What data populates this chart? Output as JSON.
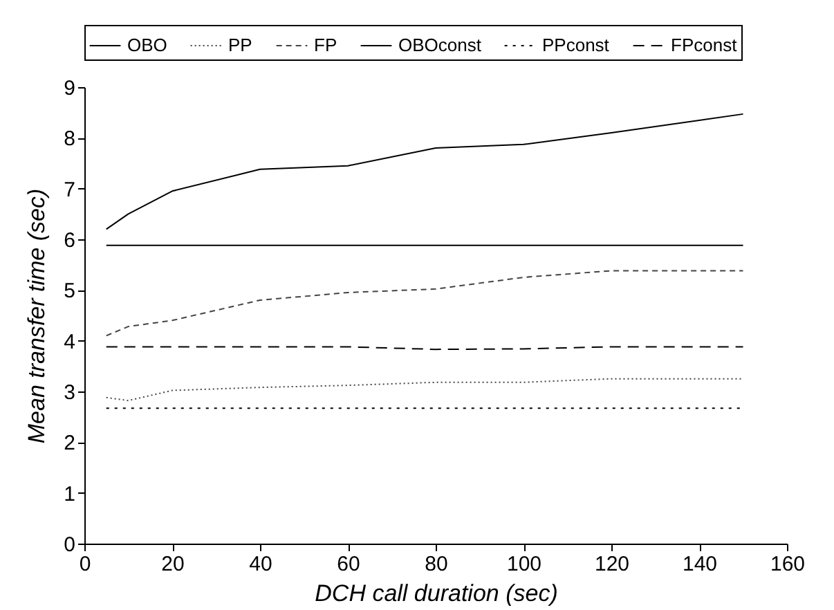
{
  "chart_data": {
    "type": "line",
    "xlabel": "DCH call duration (sec)",
    "ylabel": "Mean transfer time (sec)",
    "x": [
      5,
      10,
      20,
      40,
      60,
      80,
      100,
      120,
      150
    ],
    "series": [
      {
        "name": "OBO",
        "color": "#000000",
        "line_style": "solid",
        "values": [
          6.2,
          6.5,
          6.95,
          7.38,
          7.45,
          7.8,
          7.87,
          8.1,
          8.47
        ]
      },
      {
        "name": "PP",
        "color": "#444444",
        "line_style": "dotted",
        "values": [
          2.88,
          2.82,
          3.02,
          3.08,
          3.12,
          3.18,
          3.18,
          3.25,
          3.25
        ]
      },
      {
        "name": "FP",
        "color": "#444444",
        "line_style": "dashed",
        "values": [
          4.1,
          4.28,
          4.4,
          4.8,
          4.95,
          5.02,
          5.25,
          5.38,
          5.38
        ]
      },
      {
        "name": "OBOconst",
        "color": "#000000",
        "line_style": "solid",
        "values": [
          5.88,
          5.88,
          5.88,
          5.88,
          5.88,
          5.88,
          5.88,
          5.88,
          5.88
        ]
      },
      {
        "name": "PPconst",
        "color": "#000000",
        "line_style": "dotted",
        "values": [
          2.67,
          2.67,
          2.67,
          2.67,
          2.67,
          2.67,
          2.67,
          2.67,
          2.67
        ]
      },
      {
        "name": "FPconst",
        "color": "#000000",
        "line_style": "dashed",
        "values": [
          3.88,
          3.88,
          3.88,
          3.88,
          3.88,
          3.83,
          3.84,
          3.88,
          3.88
        ]
      }
    ],
    "xlim": [
      0,
      160
    ],
    "xticks": [
      0,
      20,
      40,
      60,
      80,
      100,
      120,
      140,
      160
    ],
    "ylim": [
      0,
      9
    ],
    "yticks": [
      0,
      1,
      2,
      3,
      4,
      5,
      6,
      7,
      8,
      9
    ],
    "legend": "top",
    "grid": false,
    "marker": "none"
  }
}
